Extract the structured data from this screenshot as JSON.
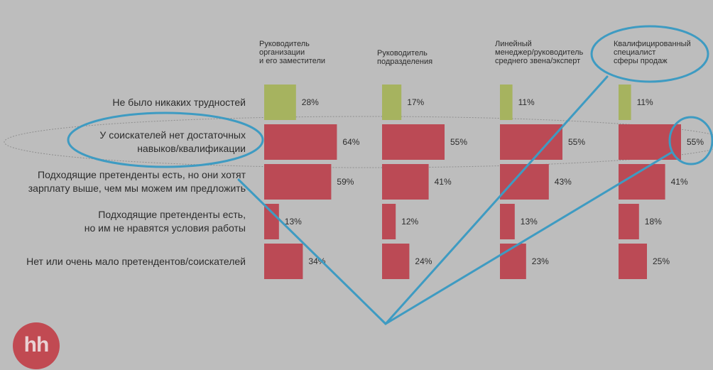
{
  "chart_data": {
    "type": "bar",
    "columns": [
      "Руководитель\nорганизации\nи его заместители",
      "Руководитель\nподразделения",
      "Линейный\nменеджер/руководитель\nсреднего звена/эксперт",
      "Квалифицированный\nспециалист\nсферы продаж"
    ],
    "categories": [
      "Не было никаких трудностей",
      "У соискателей нет достаточных\nнавыков/квалификации",
      "Подходящие претенденты есть, но они хотят\nзарплату выше, чем мы можем им предложить",
      "Подходящие претенденты есть,\nно им не нравятся условия работы",
      "Нет или очень мало претендентов/соискателей"
    ],
    "values": [
      [
        28,
        64,
        59,
        13,
        34
      ],
      [
        17,
        55,
        41,
        12,
        24
      ],
      [
        11,
        55,
        43,
        13,
        23
      ],
      [
        11,
        55,
        41,
        18,
        25
      ]
    ],
    "value_labels": [
      [
        "28%",
        "64%",
        "59%",
        "13%",
        "34%"
      ],
      [
        "17%",
        "55%",
        "41%",
        "12%",
        "24%"
      ],
      [
        "11%",
        "55%",
        "43%",
        "13%",
        "23%"
      ],
      [
        "11%",
        "55%",
        "41%",
        "18%",
        "25%"
      ]
    ],
    "bar_colors": [
      "#a6b35f",
      "#bb4a55",
      "#bb4a55",
      "#bb4a55",
      "#bb4a55"
    ]
  },
  "annotation_color": "#3e9bc2",
  "logo": "hh"
}
